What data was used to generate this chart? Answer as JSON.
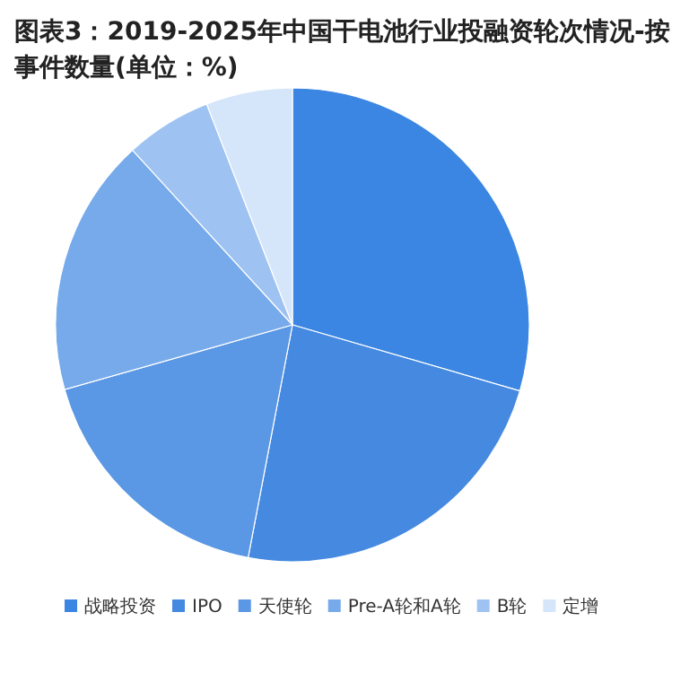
{
  "chart_data": {
    "type": "pie",
    "title": "图表3：2019-2025年中国干电池行业投融资轮次情况-按事件数量(单位：%)",
    "categories": [
      "战略投资",
      "IPO",
      "天使轮",
      "Pre-A轮和A轮",
      "B轮",
      "定增"
    ],
    "values": [
      29.5,
      23.5,
      17.6,
      17.6,
      5.9,
      5.9
    ],
    "colors": [
      "#3a86e2",
      "#4589e0",
      "#5a97e4",
      "#76aaea",
      "#9ec3f2",
      "#d5e5fa"
    ],
    "legend": "bottom"
  }
}
